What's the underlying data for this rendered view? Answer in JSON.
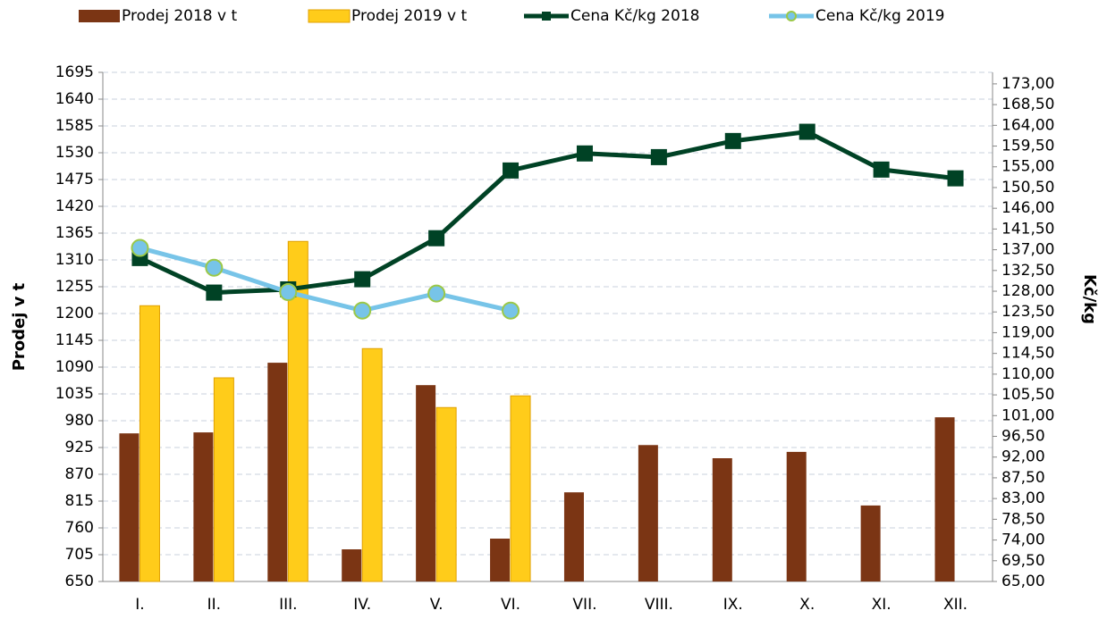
{
  "chart_data": {
    "type": "bar-line",
    "categories": [
      "I.",
      "II.",
      "III.",
      "IV.",
      "V.",
      "VI.",
      "VII.",
      "VIII.",
      "IX.",
      "X.",
      "XI.",
      "XII."
    ],
    "y_label": "Prodej v t",
    "y2_label": "Kč/kg",
    "ylim": [
      650,
      1695
    ],
    "yticks": [
      650,
      705,
      760,
      815,
      870,
      925,
      980,
      1035,
      1090,
      1145,
      1200,
      1255,
      1310,
      1365,
      1420,
      1475,
      1530,
      1585,
      1640,
      1695
    ],
    "y2lim": [
      65,
      175.5
    ],
    "y2ticks": [
      {
        "value": 65,
        "label": "65,00"
      },
      {
        "value": 69.5,
        "label": "69,50"
      },
      {
        "value": 74,
        "label": "74,00"
      },
      {
        "value": 78.5,
        "label": "78,50"
      },
      {
        "value": 83,
        "label": "83,00"
      },
      {
        "value": 87.5,
        "label": "87,50"
      },
      {
        "value": 92,
        "label": "92,00"
      },
      {
        "value": 96.5,
        "label": "96,50"
      },
      {
        "value": 101,
        "label": "101,00"
      },
      {
        "value": 105.5,
        "label": "105,50"
      },
      {
        "value": 110,
        "label": "110,00"
      },
      {
        "value": 114.5,
        "label": "114,50"
      },
      {
        "value": 119,
        "label": "119,00"
      },
      {
        "value": 123.5,
        "label": "123,50"
      },
      {
        "value": 128,
        "label": "128,00"
      },
      {
        "value": 132.5,
        "label": "132,50"
      },
      {
        "value": 137,
        "label": "137,00"
      },
      {
        "value": 141.5,
        "label": "141,50"
      },
      {
        "value": 146,
        "label": "146,00"
      },
      {
        "value": 150.5,
        "label": "150,50"
      },
      {
        "value": 155,
        "label": "155,00"
      },
      {
        "value": 159.5,
        "label": "159,50"
      },
      {
        "value": 164,
        "label": "164,00"
      },
      {
        "value": 168.5,
        "label": "168,50"
      },
      {
        "value": 173,
        "label": "173,00"
      }
    ],
    "grid": true,
    "series": [
      {
        "name": "Prodej 2018 v t",
        "type": "bar",
        "color": "#7b3514",
        "values": [
          954,
          956,
          1099,
          716,
          1053,
          738,
          833,
          930,
          903,
          916,
          806,
          987
        ]
      },
      {
        "name": "Prodej 2019 v t",
        "type": "bar",
        "color": "#ffcc1a",
        "values": [
          1216,
          1068,
          1348,
          1128,
          1007,
          1031,
          null,
          null,
          null,
          null,
          null,
          null
        ]
      },
      {
        "name": "Cena Kč/kg 2018",
        "type": "line",
        "axis": "y2",
        "color": "#004225",
        "values": [
          135.2,
          127.7,
          128.4,
          130.6,
          139.5,
          154.2,
          157.9,
          157.1,
          160.6,
          162.6,
          154.4,
          152.5
        ]
      },
      {
        "name": "Cena Kč/kg 2019",
        "type": "line",
        "axis": "y2",
        "color": "#77c4e8",
        "values": [
          137.4,
          133.1,
          127.8,
          123.8,
          127.5,
          123.8,
          null,
          null,
          null,
          null,
          null,
          null
        ]
      }
    ]
  }
}
